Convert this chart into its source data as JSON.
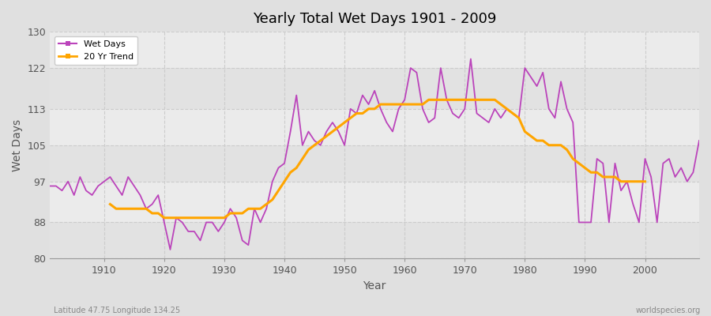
{
  "title": "Yearly Total Wet Days 1901 - 2009",
  "xlabel": "Year",
  "ylabel": "Wet Days",
  "subtitle_left": "Latitude 47.75 Longitude 134.25",
  "subtitle_right": "worldspecies.org",
  "xlim": [
    1901,
    2009
  ],
  "ylim": [
    80,
    130
  ],
  "yticks": [
    80,
    88,
    97,
    105,
    113,
    122,
    130
  ],
  "xticks": [
    1910,
    1920,
    1930,
    1940,
    1950,
    1960,
    1970,
    1980,
    1990,
    2000
  ],
  "wet_days_color": "#BB44BB",
  "trend_color": "#FFA500",
  "bg_color": "#E0E0E0",
  "plot_bg_color": "#F0F0F0",
  "band_color_light": "#EBEBEB",
  "band_color_dark": "#E2E2E2",
  "grid_color": "#CCCCCC",
  "legend_wet": "Wet Days",
  "legend_trend": "20 Yr Trend",
  "years": [
    1901,
    1902,
    1903,
    1904,
    1905,
    1906,
    1907,
    1908,
    1909,
    1910,
    1911,
    1912,
    1913,
    1914,
    1915,
    1916,
    1917,
    1918,
    1919,
    1920,
    1921,
    1922,
    1923,
    1924,
    1925,
    1926,
    1927,
    1928,
    1929,
    1930,
    1931,
    1932,
    1933,
    1934,
    1935,
    1936,
    1937,
    1938,
    1939,
    1940,
    1941,
    1942,
    1943,
    1944,
    1945,
    1946,
    1947,
    1948,
    1949,
    1950,
    1951,
    1952,
    1953,
    1954,
    1955,
    1956,
    1957,
    1958,
    1959,
    1960,
    1961,
    1962,
    1963,
    1964,
    1965,
    1966,
    1967,
    1968,
    1969,
    1970,
    1971,
    1972,
    1973,
    1974,
    1975,
    1976,
    1977,
    1978,
    1979,
    1980,
    1981,
    1982,
    1983,
    1984,
    1985,
    1986,
    1987,
    1988,
    1989,
    1990,
    1991,
    1992,
    1993,
    1994,
    1995,
    1996,
    1997,
    1998,
    1999,
    2000,
    2001,
    2002,
    2003,
    2004,
    2005,
    2006,
    2007,
    2008,
    2009
  ],
  "wet_days": [
    96,
    96,
    95,
    97,
    94,
    98,
    95,
    94,
    96,
    97,
    98,
    96,
    94,
    98,
    96,
    94,
    91,
    92,
    94,
    88,
    82,
    89,
    88,
    86,
    86,
    84,
    88,
    88,
    86,
    88,
    91,
    89,
    84,
    83,
    91,
    88,
    91,
    97,
    100,
    101,
    108,
    116,
    105,
    108,
    106,
    105,
    108,
    110,
    108,
    105,
    113,
    112,
    116,
    114,
    117,
    113,
    110,
    108,
    113,
    115,
    122,
    121,
    113,
    110,
    111,
    122,
    115,
    112,
    111,
    113,
    124,
    112,
    111,
    110,
    113,
    111,
    113,
    112,
    111,
    122,
    120,
    118,
    121,
    113,
    111,
    119,
    113,
    110,
    88,
    88,
    88,
    102,
    101,
    88,
    101,
    95,
    97,
    92,
    88,
    102,
    98,
    88,
    101,
    102,
    98,
    100,
    97,
    99,
    106
  ],
  "trend": [
    null,
    null,
    null,
    null,
    null,
    null,
    null,
    null,
    null,
    null,
    92,
    91,
    91,
    91,
    91,
    91,
    91,
    90,
    90,
    89,
    89,
    89,
    89,
    89,
    89,
    89,
    89,
    89,
    89,
    89,
    90,
    90,
    90,
    91,
    91,
    91,
    92,
    93,
    95,
    97,
    99,
    100,
    102,
    104,
    105,
    106,
    107,
    108,
    109,
    110,
    111,
    112,
    112,
    113,
    113,
    114,
    114,
    114,
    114,
    114,
    114,
    114,
    114,
    115,
    115,
    115,
    115,
    115,
    115,
    115,
    115,
    115,
    115,
    115,
    115,
    114,
    113,
    112,
    111,
    108,
    107,
    106,
    106,
    105,
    105,
    105,
    104,
    102,
    101,
    100,
    99,
    99,
    98,
    98,
    98,
    97,
    97,
    97,
    97,
    97,
    null,
    null,
    null,
    null,
    null,
    null,
    null,
    null,
    null
  ]
}
